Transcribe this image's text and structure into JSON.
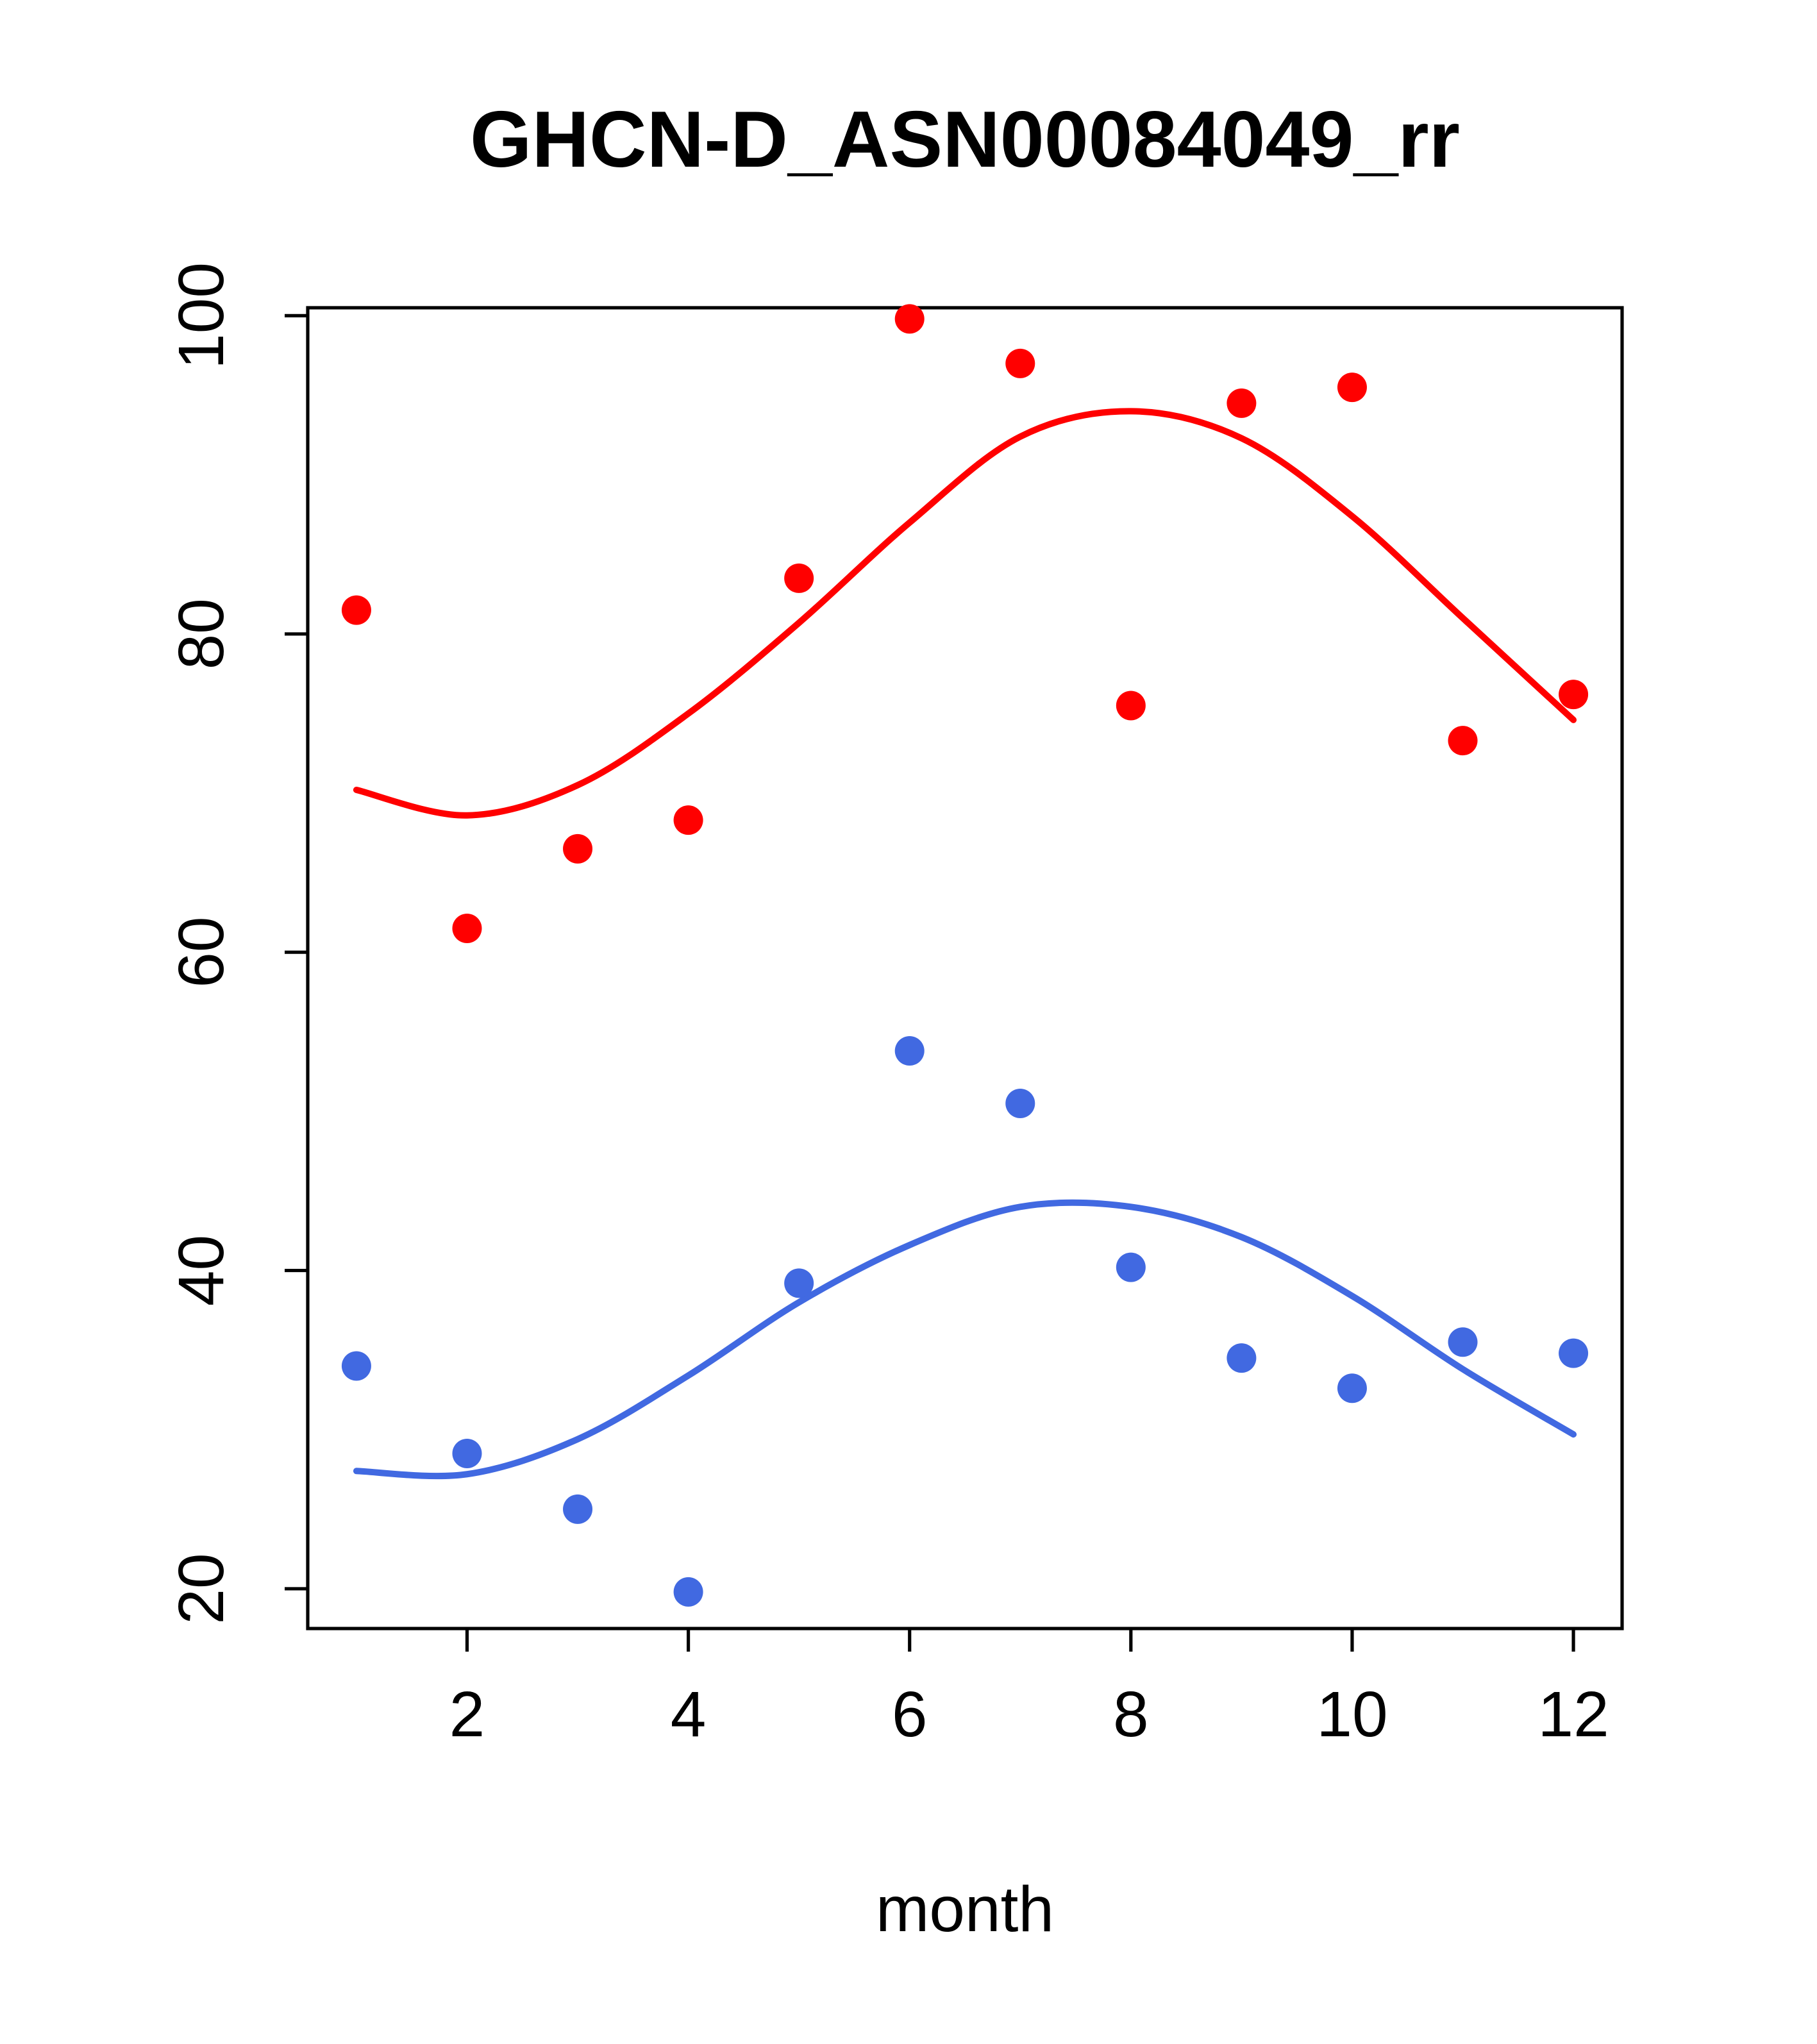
{
  "chart_data": {
    "type": "scatter",
    "title": "GHCN-D_ASN00084049_rr",
    "xlabel": "month",
    "ylabel": "",
    "grid": false,
    "legend": "none",
    "colors": {
      "red_series": "#ff0000",
      "blue_series": "#4169e1",
      "axis": "#000000",
      "background": "#ffffff"
    },
    "x": [
      1,
      2,
      3,
      4,
      5,
      6,
      7,
      8,
      9,
      10,
      11,
      12
    ],
    "axes": {
      "x": {
        "label": "month",
        "ticks": [
          2,
          4,
          6,
          8,
          10,
          12
        ],
        "range": [
          0.56,
          12.44
        ]
      },
      "y": {
        "label": "",
        "ticks": [
          20,
          40,
          60,
          80,
          100
        ],
        "range": [
          17.5,
          100.5
        ]
      }
    },
    "series": [
      {
        "name": "red-smooth-line",
        "type": "line",
        "color": "#ff0000",
        "values": [
          70.2,
          68.6,
          70.5,
          75.0,
          80.7,
          87.0,
          92.4,
          94.0,
          92.3,
          87.4,
          81.0,
          74.6
        ]
      },
      {
        "name": "blue-smooth-line",
        "type": "line",
        "color": "#4169e1",
        "values": [
          27.4,
          27.2,
          29.4,
          33.4,
          38.0,
          41.6,
          44.0,
          44.0,
          42.1,
          38.4,
          33.8,
          29.7
        ]
      },
      {
        "name": "red-points",
        "type": "points",
        "color": "#ff0000",
        "values": [
          81.5,
          61.5,
          66.5,
          68.3,
          83.5,
          99.8,
          97.0,
          75.5,
          94.5,
          95.5,
          73.3,
          76.2
        ]
      },
      {
        "name": "blue-points",
        "type": "points",
        "color": "#4169e1",
        "values": [
          34.0,
          28.5,
          25.0,
          19.8,
          39.2,
          53.8,
          50.5,
          40.2,
          34.5,
          32.6,
          35.5,
          34.8
        ]
      }
    ]
  }
}
